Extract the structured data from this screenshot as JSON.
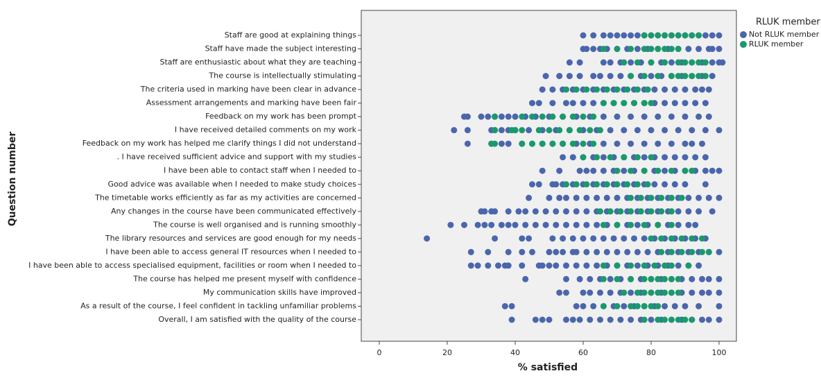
{
  "chart_data": {
    "type": "strip",
    "x_label": "% satisfied",
    "y_label": "Question number",
    "legend_title": "RLUK member",
    "categories": [
      "Staff are good at explaining things",
      "Staff have made the subject interesting",
      "Staff are enthusiastic about what they are teaching",
      "The course is intellectually stimulating",
      "The criteria used in marking have been clear in advance",
      "Assessment arrangements and marking have been fair",
      "Feedback on my work has been prompt",
      "I have received detailed comments on my work",
      "Feedback on my work has helped me clarify things I did not understand",
      ". I have received sufficient advice and support with my studies",
      "I have been able to contact staff when I needed to",
      "Good advice was available when I needed to make study choices",
      "The timetable works efficiently as far as my activities are concerned",
      "Any changes in the course have been communicated effectively",
      "The course is well organised and is running smoothly",
      "The library resources and services are good enough for my needs",
      "I have been able to access general IT resources when I needed to",
      "I have been able to access specialised equipment, facilities or room when I needed to",
      "The course has helped me present myself with confidence",
      "My communication skills have improved",
      "As a result of the course, I feel confident in tackling unfamiliar problems",
      "Overall, I am satisfied with the quality of the course"
    ],
    "xlim": [
      -5.3,
      105.1
    ],
    "xticks": [
      0,
      20,
      40,
      60,
      80,
      100
    ],
    "series": [
      {
        "name": "Not RLUK member",
        "color": "#4a66ac",
        "values": [
          [
            60,
            63,
            66,
            68,
            70,
            72,
            74,
            76,
            78,
            80,
            82,
            84,
            86,
            88,
            90,
            92,
            94,
            96,
            98,
            100
          ],
          [
            60,
            61,
            63,
            65,
            67,
            70,
            73,
            76,
            79,
            82,
            85,
            88,
            91,
            94,
            97,
            98,
            100
          ],
          [
            56,
            59,
            66,
            68,
            71,
            74,
            77,
            80,
            83,
            86,
            89,
            92,
            95,
            98,
            100,
            101
          ],
          [
            49,
            53,
            56,
            59,
            63,
            65,
            68,
            71,
            74,
            77,
            80,
            83,
            86,
            89,
            92,
            95,
            98
          ],
          [
            48,
            51,
            54,
            57,
            60,
            63,
            66,
            69,
            72,
            75,
            78,
            81,
            84,
            87,
            90,
            93,
            95,
            97
          ],
          [
            45,
            47,
            51,
            55,
            57,
            60,
            63,
            66,
            69,
            72,
            75,
            78,
            81,
            84,
            87,
            90,
            93,
            96
          ],
          [
            25,
            26,
            30,
            32,
            34,
            36,
            38,
            40,
            43,
            46,
            50,
            54,
            58,
            62,
            66,
            70,
            74,
            78,
            82,
            86,
            90,
            94,
            97
          ],
          [
            22,
            26,
            33,
            34,
            36,
            38,
            40,
            44,
            48,
            52,
            56,
            60,
            64,
            68,
            72,
            76,
            80,
            84,
            88,
            92,
            96,
            100
          ],
          [
            26,
            33,
            36,
            38,
            42,
            45,
            48,
            51,
            54,
            58,
            62,
            66,
            70,
            74,
            78,
            82,
            86,
            90,
            92,
            95
          ],
          [
            54,
            57,
            60,
            63,
            66,
            69,
            72,
            75,
            78,
            81,
            84,
            87,
            90,
            93,
            96
          ],
          [
            48,
            53,
            59,
            61,
            63,
            66,
            69,
            72,
            75,
            78,
            81,
            84,
            87,
            90,
            93,
            96,
            98,
            100
          ],
          [
            45,
            47,
            51,
            52,
            54,
            57,
            60,
            63,
            66,
            69,
            72,
            75,
            78,
            81,
            84,
            87,
            90,
            96
          ],
          [
            44,
            50,
            53,
            55,
            58,
            61,
            64,
            67,
            70,
            73,
            76,
            79,
            82,
            85,
            88,
            91,
            94,
            97,
            100
          ],
          [
            30,
            31,
            33,
            34,
            38,
            41,
            43,
            46,
            49,
            52,
            55,
            58,
            61,
            64,
            67,
            70,
            73,
            76,
            79,
            82,
            85,
            88,
            91,
            94,
            98
          ],
          [
            21,
            25,
            29,
            31,
            33,
            36,
            38,
            40,
            43,
            46,
            49,
            52,
            55,
            58,
            61,
            64,
            67,
            70,
            73,
            76,
            79,
            82,
            85,
            88,
            91,
            93
          ],
          [
            14,
            34,
            42,
            44,
            51,
            54,
            57,
            60,
            63,
            66,
            69,
            72,
            75,
            78,
            81,
            84,
            87,
            90,
            93,
            96
          ],
          [
            27,
            32,
            38,
            42,
            45,
            50,
            52,
            54,
            57,
            58,
            61,
            64,
            67,
            70,
            73,
            76,
            79,
            82,
            85,
            88,
            91,
            94,
            97,
            100
          ],
          [
            27,
            29,
            32,
            35,
            37,
            38,
            42,
            47,
            48,
            50,
            52,
            55,
            58,
            61,
            64,
            67,
            70,
            73,
            76,
            79,
            82,
            85,
            88,
            91,
            94
          ],
          [
            43,
            55,
            59,
            62,
            65,
            68,
            71,
            74,
            77,
            80,
            83,
            86,
            89,
            92,
            95,
            97,
            100
          ],
          [
            53,
            55,
            60,
            62,
            65,
            68,
            71,
            74,
            77,
            80,
            83,
            86,
            89,
            92,
            95,
            97,
            100
          ],
          [
            37,
            39,
            58,
            60,
            63,
            66,
            69,
            72,
            75,
            78,
            81,
            84,
            87,
            90,
            94,
            100
          ],
          [
            39,
            46,
            48,
            50,
            55,
            57,
            59,
            62,
            65,
            68,
            71,
            74,
            77,
            80,
            83,
            86,
            89,
            92,
            95,
            97,
            100
          ]
        ]
      },
      {
        "name": "RLUK member",
        "color": "#1a9a6c",
        "values": [
          [
            78,
            80,
            82,
            84,
            86,
            88,
            90,
            92,
            94
          ],
          [
            66,
            70,
            74,
            78,
            80,
            82,
            84,
            86,
            88
          ],
          [
            72,
            76,
            80,
            84,
            88,
            90,
            92,
            94,
            96
          ],
          [
            74,
            78,
            82,
            86,
            88,
            90,
            92,
            94,
            96
          ],
          [
            55,
            58,
            61,
            64,
            67,
            70,
            73,
            76,
            79
          ],
          [
            66,
            69,
            72,
            75,
            78,
            80
          ],
          [
            34,
            42,
            45,
            48,
            51,
            54,
            57,
            60,
            63
          ],
          [
            34,
            39,
            40,
            42,
            47,
            50,
            53,
            56,
            59,
            62,
            65
          ],
          [
            33,
            34,
            42,
            45,
            48,
            51,
            54,
            57,
            60,
            63
          ],
          [
            60,
            64,
            68,
            72,
            76,
            80
          ],
          [
            70,
            74,
            78,
            82,
            86,
            90,
            92
          ],
          [
            55,
            58,
            61,
            64,
            67,
            70,
            73,
            76,
            79
          ],
          [
            74,
            77,
            80,
            83,
            86,
            89
          ],
          [
            65,
            68,
            71,
            74,
            77,
            80,
            83,
            86
          ],
          [
            66,
            70,
            74,
            78,
            82,
            86
          ],
          [
            80,
            83,
            86,
            89,
            92,
            95
          ],
          [
            83,
            86,
            89,
            92,
            95,
            97
          ],
          [
            66,
            70,
            74,
            78,
            81,
            84,
            86,
            91
          ],
          [
            66,
            70,
            74,
            78,
            80,
            82,
            84,
            86,
            88
          ],
          [
            72,
            76,
            78,
            80,
            82,
            84,
            86,
            88
          ],
          [
            66,
            70,
            74,
            76,
            78,
            80,
            82
          ],
          [
            78,
            82,
            84,
            86,
            88,
            90,
            92
          ]
        ]
      }
    ]
  }
}
